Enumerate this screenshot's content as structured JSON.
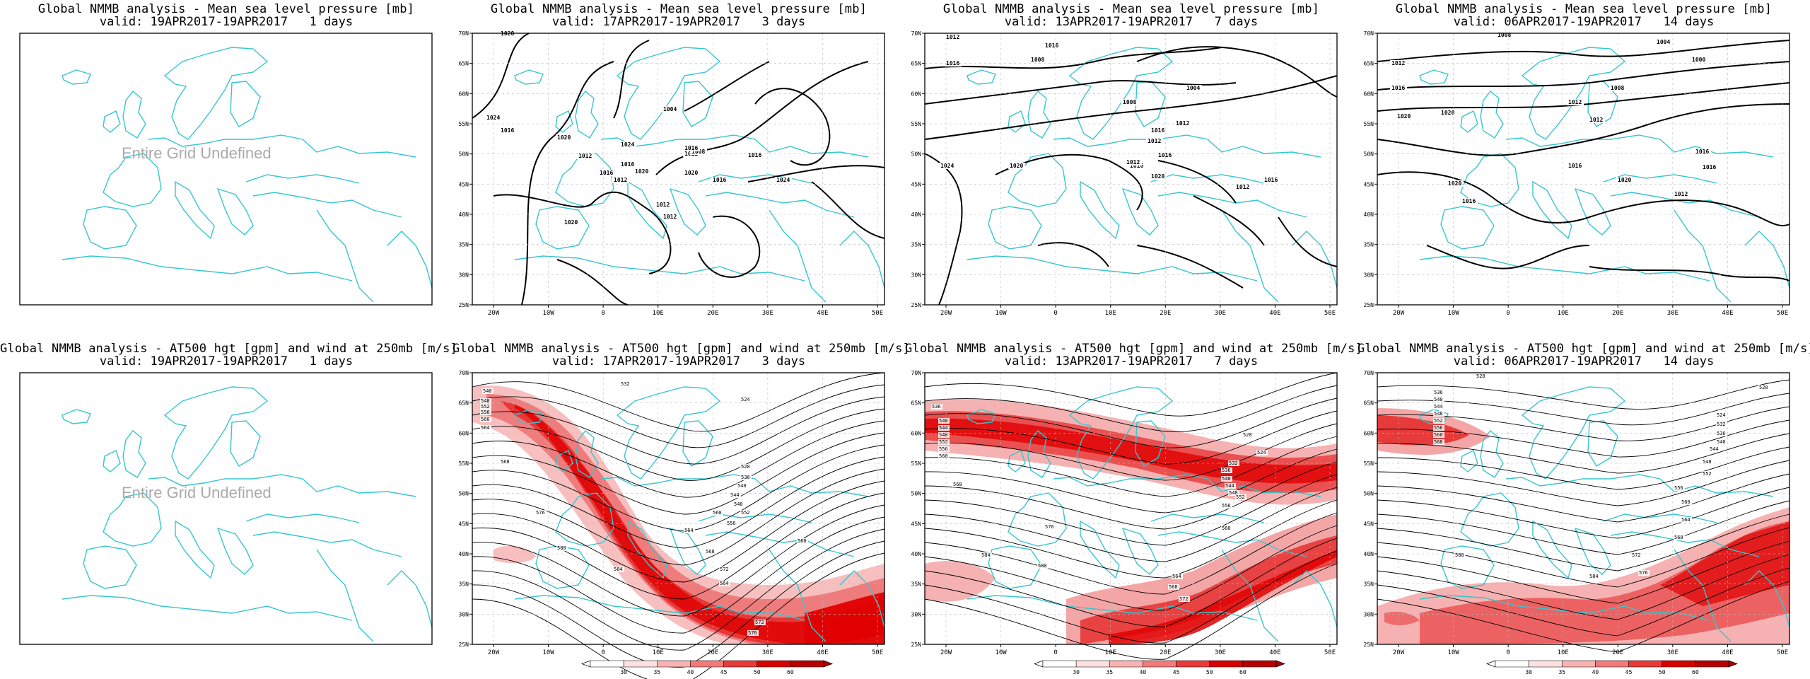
{
  "colors": {
    "coast": "#36c6cf",
    "contour": "#000000",
    "jet": "#e00000",
    "frame": "#000000"
  },
  "mslp_title": "Global NMMB analysis - Mean sea level pressure [mb]",
  "z500_title": "Global NMMB analysis - AT500 hgt [gpm] and wind at 250mb [m/s]",
  "undefined_text": "Entire Grid Undefined",
  "lon_ticks": [
    "20W",
    "10W",
    "0",
    "10E",
    "20E",
    "30E",
    "40E",
    "50E"
  ],
  "lat_ticks": [
    "70N",
    "65N",
    "60N",
    "55N",
    "50N",
    "45N",
    "40N",
    "35N",
    "30N",
    "25N"
  ],
  "colorbar_ticks": [
    "30",
    "35",
    "40",
    "45",
    "50",
    "60"
  ],
  "panels": [
    {
      "valid": "valid: 19APR2017-19APR2017   1 days"
    },
    {
      "valid": "valid: 17APR2017-19APR2017   3 days"
    },
    {
      "valid": "valid: 13APR2017-19APR2017   7 days"
    },
    {
      "valid": "valid: 06APR2017-19APR2017   14 days"
    }
  ],
  "mslp_labels": {
    "p1": [
      "1028",
      "1024",
      "1020",
      "1016",
      "1012",
      "1012",
      "1016",
      "1020",
      "1024",
      "1016",
      "1012",
      "1008",
      "1004",
      "1016",
      "1016",
      "1012",
      "1012",
      "1020",
      "1024",
      "1020",
      "1016"
    ],
    "p2": [
      "1012",
      "1016",
      "1008",
      "1016",
      "1004",
      "1008",
      "1012",
      "1024",
      "1020",
      "1016",
      "1012",
      "1016",
      "1012",
      "1016",
      "1012",
      "1016",
      "1020"
    ],
    "p3": [
      "1012",
      "1008",
      "1004",
      "1000",
      "1012",
      "1016",
      "1020",
      "1020",
      "1012",
      "1008",
      "1016",
      "1020",
      "1016",
      "1016",
      "1012",
      "1016",
      "1020"
    ]
  },
  "z500_labels": {
    "p1": [
      "540",
      "548",
      "552",
      "556",
      "560",
      "564",
      "568",
      "532",
      "524",
      "528",
      "536",
      "540",
      "544",
      "548",
      "552",
      "556",
      "560",
      "564",
      "568",
      "572",
      "576",
      "580",
      "584",
      "576",
      "572",
      "564",
      "560"
    ],
    "p2": [
      "536",
      "540",
      "544",
      "548",
      "552",
      "556",
      "560",
      "568",
      "520",
      "524",
      "532",
      "536",
      "540",
      "544",
      "548",
      "552",
      "556",
      "560",
      "564",
      "568",
      "572",
      "576",
      "580",
      "584"
    ],
    "p3": [
      "528",
      "536",
      "540",
      "544",
      "548",
      "552",
      "556",
      "560",
      "568",
      "520",
      "524",
      "532",
      "536",
      "540",
      "544",
      "548",
      "552",
      "556",
      "560",
      "564",
      "568",
      "572",
      "576",
      "580",
      "584"
    ]
  }
}
